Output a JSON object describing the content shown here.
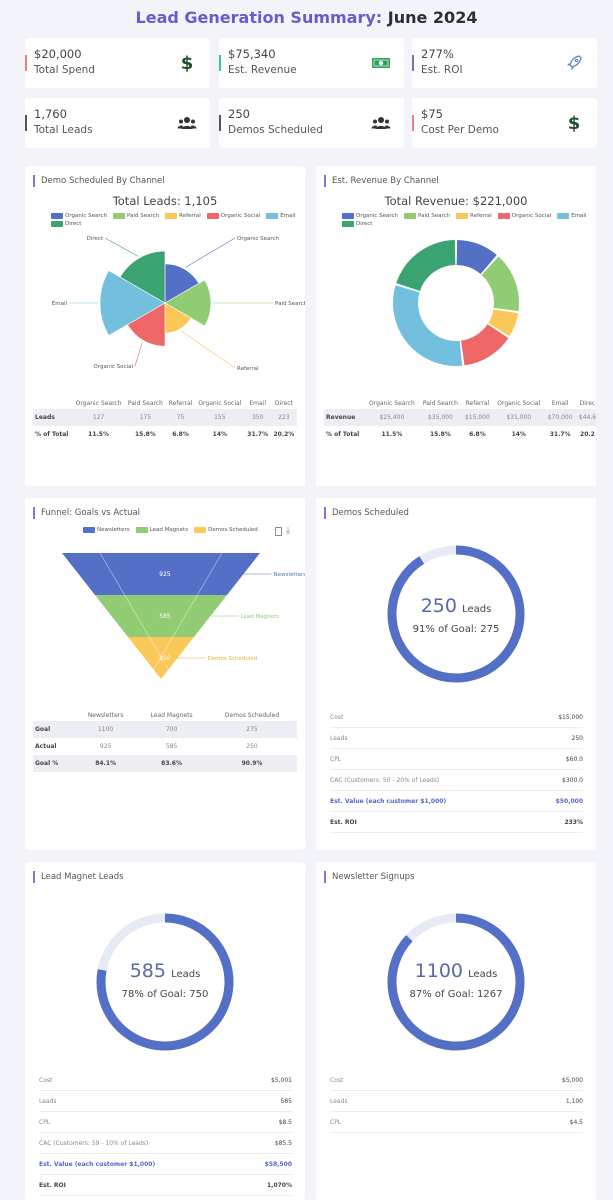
{
  "header": {
    "title_part1": "Lead Generation Summary:",
    "title_part2": "June 2024"
  },
  "kpis": [
    {
      "value": "$20,000",
      "label": "Total Spend",
      "accent": "#e8837c",
      "icon": "dollar-icon"
    },
    {
      "value": "$75,340",
      "label": "Est. Revenue",
      "accent": "#36c6a6",
      "icon": "cash-icon"
    },
    {
      "value": "277%",
      "label": "Est. ROI",
      "accent": "#7a68d8",
      "icon": "rocket-icon"
    },
    {
      "value": "1,760",
      "label": "Total Leads",
      "accent": "#555555",
      "icon": "users-icon"
    },
    {
      "value": "250",
      "label": "Demos Scheduled",
      "accent": "#555555",
      "icon": "users-icon"
    },
    {
      "value": "$75",
      "label": "Cost Per Demo",
      "accent": "#e8837c",
      "icon": "dollar-icon"
    }
  ],
  "demo_channel": {
    "card_title": "Demo Scheduled By Channel",
    "chart_title": "Total Leads: 1,105",
    "table": {
      "headers": [
        "Organic Search",
        "Paid Search",
        "Referral",
        "Organic Social",
        "Email",
        "Direct"
      ],
      "rows": [
        {
          "label": "Leads",
          "values": [
            "127",
            "175",
            "75",
            "155",
            "350",
            "223"
          ]
        },
        {
          "label": "% of Total",
          "values": [
            "11.5%",
            "15.8%",
            "6.8%",
            "14%",
            "31.7%",
            "20.2%"
          ]
        }
      ]
    }
  },
  "revenue_channel": {
    "card_title": "Est. Revenue By Channel",
    "chart_title": "Total Revenue: $221,000",
    "table": {
      "headers": [
        "Organic Search",
        "Paid Search",
        "Referral",
        "Organic Social",
        "Email",
        "Direc"
      ],
      "rows": [
        {
          "label": "Revenue",
          "values": [
            "$25,400",
            "$35,000",
            "$15,000",
            "$31,000",
            "$70,000",
            "$44,6"
          ]
        },
        {
          "label": "% of Total",
          "values": [
            "11.5%",
            "15.8%",
            "6.8%",
            "14%",
            "31.7%",
            "20.2"
          ]
        }
      ]
    }
  },
  "funnel": {
    "card_title": "Funnel: Goals vs Actual",
    "table": {
      "headers": [
        "Newsletters",
        "Lead Magnets",
        "Demos Scheduled"
      ],
      "rows": [
        {
          "label": "Goal",
          "values": [
            "1100",
            "700",
            "275"
          ]
        },
        {
          "label": "Actual",
          "values": [
            "925",
            "585",
            "250"
          ]
        },
        {
          "label": "Goal %",
          "values": [
            "84.1%",
            "83.6%",
            "90.9%"
          ]
        }
      ]
    }
  },
  "demos_gauge": {
    "card_title": "Demos Scheduled",
    "big": "250",
    "unit": "Leads",
    "goal_text": "91% of Goal: 275",
    "rows": [
      {
        "k": "Cost",
        "v": "$15,000",
        "style": ""
      },
      {
        "k": "Leads",
        "v": "250",
        "style": ""
      },
      {
        "k": "CPL",
        "v": "$60.0",
        "style": ""
      },
      {
        "k": "CAC (Customers: 50 - 20% of Leads)",
        "v": "$300.0",
        "style": ""
      },
      {
        "k": "Est. Value (each customer $1,000)",
        "v": "$50,000",
        "style": "hl"
      },
      {
        "k": "Est. ROI",
        "v": "233%",
        "style": "bold"
      }
    ]
  },
  "lead_magnet_gauge": {
    "card_title": "Lead Magnet Leads",
    "big": "585",
    "unit": "Leads",
    "goal_text": "78% of Goal: 750",
    "rows": [
      {
        "k": "Cost",
        "v": "$5,001",
        "style": ""
      },
      {
        "k": "Leads",
        "v": "585",
        "style": ""
      },
      {
        "k": "CPL",
        "v": "$8.5",
        "style": ""
      },
      {
        "k": "CAC (Customers: 59 - 10% of Leads)",
        "v": "$85.5",
        "style": ""
      },
      {
        "k": "Est. Value (each customer $1,000)",
        "v": "$58,500",
        "style": "hl"
      },
      {
        "k": "Est. ROI",
        "v": "1,070%",
        "style": "bold"
      }
    ]
  },
  "newsletter_gauge": {
    "card_title": "Newsletter Signups",
    "big": "1100",
    "unit": "Leads",
    "goal_text": "87% of Goal: 1267",
    "rows": [
      {
        "k": "Cost",
        "v": "$5,000",
        "style": ""
      },
      {
        "k": "Leads",
        "v": "1,100",
        "style": ""
      },
      {
        "k": "CPL",
        "v": "$4.5",
        "style": ""
      }
    ]
  },
  "chart_data": [
    {
      "type": "pie",
      "variant": "polar-area",
      "title": "Total Leads: 1,105",
      "categories": [
        "Organic Search",
        "Paid Search",
        "Referral",
        "Organic Social",
        "Email",
        "Direct"
      ],
      "values": [
        127,
        175,
        75,
        155,
        350,
        223
      ],
      "colors": [
        "#5470c6",
        "#91cc75",
        "#fac858",
        "#ee6666",
        "#73c0de",
        "#3ba272"
      ],
      "legend": "top"
    },
    {
      "type": "pie",
      "variant": "donut",
      "title": "Total Revenue: $221,000",
      "categories": [
        "Organic Search",
        "Paid Search",
        "Referral",
        "Organic Social",
        "Email",
        "Direct"
      ],
      "values": [
        25400,
        35000,
        15000,
        31000,
        70000,
        44600
      ],
      "colors": [
        "#5470c6",
        "#91cc75",
        "#fac858",
        "#ee6666",
        "#73c0de",
        "#3ba272"
      ],
      "legend": "top"
    },
    {
      "type": "funnel",
      "title": "Funnel: Goals vs Actual",
      "categories": [
        "Newsletters",
        "Lead Magnets",
        "Demos Scheduled"
      ],
      "values": [
        925,
        585,
        250
      ],
      "colors": [
        "#5470c6",
        "#91cc75",
        "#fac858"
      ],
      "legend": "top"
    },
    {
      "type": "gauge",
      "title": "Demos Scheduled",
      "value": 250,
      "goal": 275,
      "fraction": 0.91
    },
    {
      "type": "gauge",
      "title": "Lead Magnet Leads",
      "value": 585,
      "goal": 750,
      "fraction": 0.78
    },
    {
      "type": "gauge",
      "title": "Newsletter Signups",
      "value": 1100,
      "goal": 1267,
      "fraction": 0.87
    }
  ]
}
